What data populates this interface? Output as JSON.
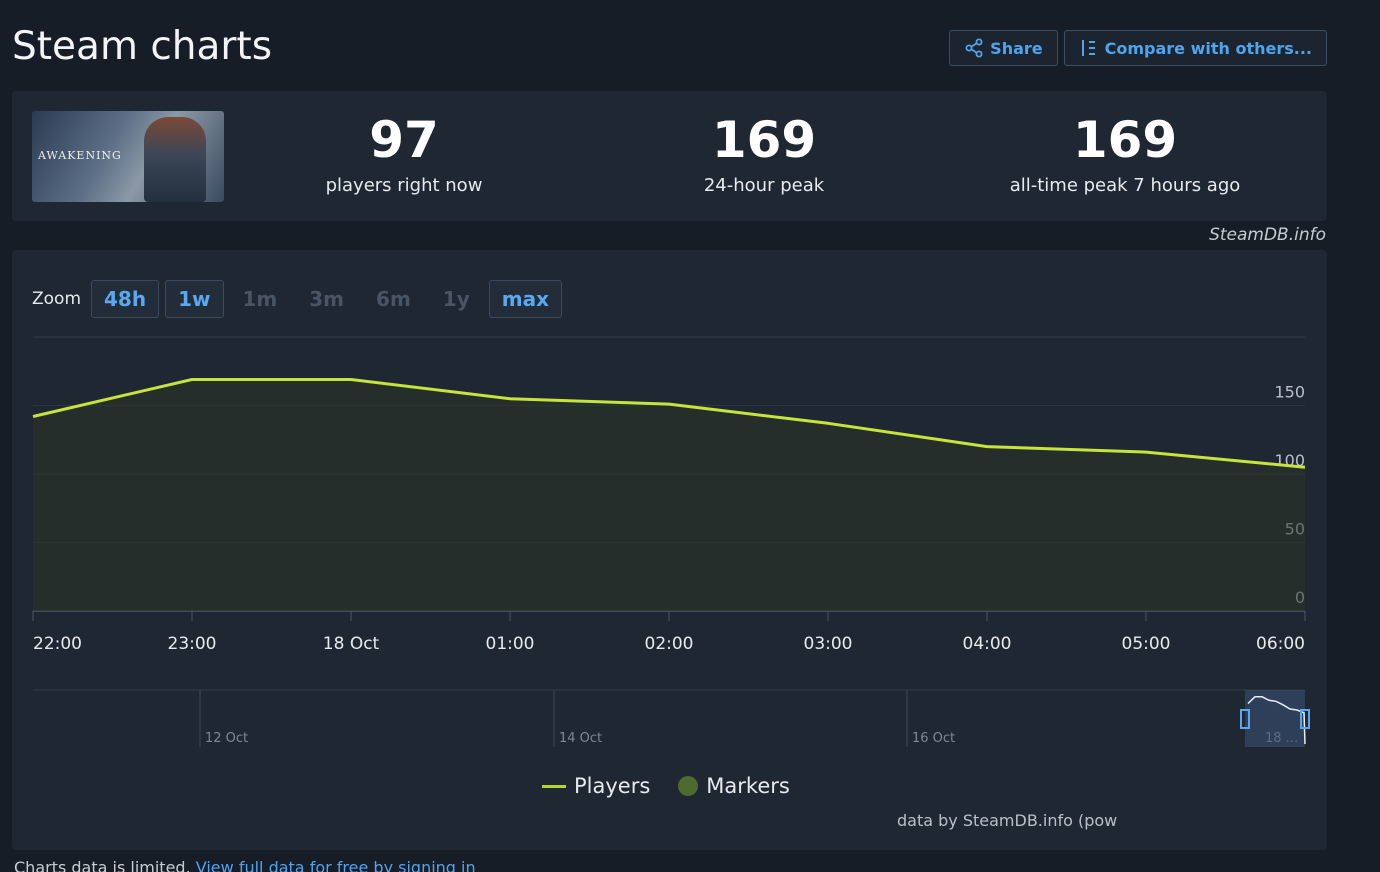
{
  "header": {
    "title": "Steam charts",
    "share_label": "Share",
    "compare_label": "Compare with others..."
  },
  "stats": {
    "thumbnail_text": "AWAKENING",
    "players_now": "97",
    "players_now_label": "players right now",
    "peak_24h": "169",
    "peak_24h_label": "24-hour peak",
    "peak_all_time": "169",
    "peak_all_time_label": "all-time peak 7 hours ago"
  },
  "source_credit": "SteamDB.info",
  "zoom": {
    "label": "Zoom",
    "options": [
      {
        "label": "48h",
        "enabled": true
      },
      {
        "label": "1w",
        "enabled": true
      },
      {
        "label": "1m",
        "enabled": false
      },
      {
        "label": "3m",
        "enabled": false
      },
      {
        "label": "6m",
        "enabled": false
      },
      {
        "label": "1y",
        "enabled": false
      },
      {
        "label": "max",
        "enabled": true
      }
    ]
  },
  "chart_data": {
    "type": "area",
    "x_ticks": [
      "22:00",
      "23:00",
      "18 Oct",
      "01:00",
      "02:00",
      "03:00",
      "04:00",
      "05:00",
      "06:00"
    ],
    "y_ticks": [
      0,
      50,
      100,
      150
    ],
    "ylim": [
      0,
      200
    ],
    "grid": true,
    "legend_placement": "bottom",
    "series": [
      {
        "name": "Players",
        "color": "#c6e43a",
        "x_hours": [
          0,
          1,
          2,
          3,
          4,
          5,
          6,
          7,
          8
        ],
        "values": [
          142,
          169,
          169,
          155,
          151,
          137,
          120,
          116,
          105
        ]
      }
    ],
    "navigator_labels": [
      "12 Oct",
      "14 Oct",
      "16 Oct",
      "18 ..."
    ]
  },
  "legend": {
    "players_label": "Players",
    "markers_label": "Markers"
  },
  "data_credit": "data by SteamDB.info (pow",
  "footer": {
    "note": "Charts data is limited.",
    "link": "View full data for free by signing in"
  }
}
